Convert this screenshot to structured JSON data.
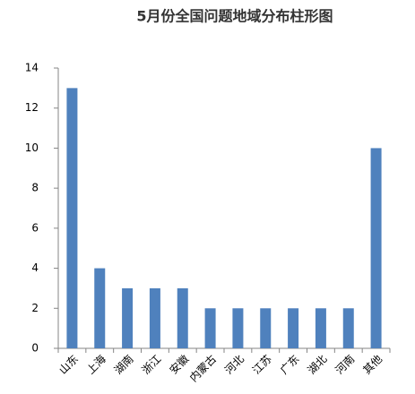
{
  "chart_data": {
    "type": "bar",
    "title": "5月份全国问题地域分布柱形图",
    "categories": [
      "山东",
      "上海",
      "湖南",
      "浙江",
      "安徽",
      "内蒙古",
      "河北",
      "江苏",
      "广东",
      "湖北",
      "河南",
      "其他"
    ],
    "values": [
      13,
      4,
      3,
      3,
      3,
      2,
      2,
      2,
      2,
      2,
      2,
      10
    ],
    "color": "#4f81bd",
    "ylim": [
      0,
      14
    ],
    "yticks": [
      0,
      2,
      4,
      6,
      8,
      10,
      12,
      14
    ],
    "grid": false
  }
}
